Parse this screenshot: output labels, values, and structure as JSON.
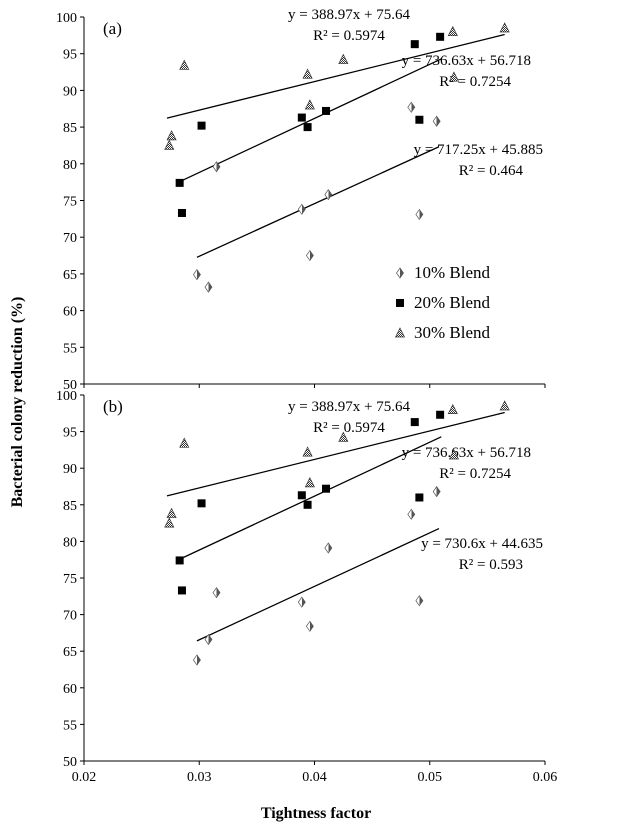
{
  "chart_data": {
    "type": "scatter",
    "xlabel": "Tightness factor",
    "ylabel": "Bacterial colony reduction (%)",
    "x_ticks": [
      "0.02",
      "0.03",
      "0.04",
      "0.05",
      "0.06"
    ],
    "y_ticks": [
      "50",
      "55",
      "60",
      "65",
      "70",
      "75",
      "80",
      "85",
      "90",
      "95",
      "100"
    ],
    "xlim": [
      0.02,
      0.06
    ],
    "ylim": [
      50,
      100
    ],
    "legend": {
      "placement": "inside panel (a), lower middle",
      "entries": [
        "10% Blend",
        "20% Blend",
        "30% Blend"
      ]
    },
    "panels": [
      {
        "label": "(a)",
        "series": [
          {
            "name": "10% Blend",
            "marker": "half-filled diamond",
            "points": [
              [
                0.0298,
                64.9
              ],
              [
                0.0308,
                63.2
              ],
              [
                0.0315,
                79.6
              ],
              [
                0.0389,
                73.8
              ],
              [
                0.0396,
                67.5
              ],
              [
                0.0412,
                75.8
              ],
              [
                0.0484,
                87.7
              ],
              [
                0.0491,
                73.1
              ],
              [
                0.0506,
                85.8
              ]
            ]
          },
          {
            "name": "20% Blend",
            "marker": "filled square",
            "points": [
              [
                0.0283,
                77.4
              ],
              [
                0.0285,
                73.3
              ],
              [
                0.0302,
                85.2
              ],
              [
                0.0389,
                86.3
              ],
              [
                0.0394,
                85.0
              ],
              [
                0.041,
                87.2
              ],
              [
                0.0487,
                96.3
              ],
              [
                0.0491,
                86.0
              ],
              [
                0.0509,
                97.3
              ]
            ]
          },
          {
            "name": "30% Blend",
            "marker": "shaded triangle",
            "points": [
              [
                0.0274,
                82.5
              ],
              [
                0.0276,
                83.8
              ],
              [
                0.0287,
                93.4
              ],
              [
                0.0394,
                92.2
              ],
              [
                0.0396,
                88.0
              ],
              [
                0.0425,
                94.2
              ],
              [
                0.052,
                98.0
              ],
              [
                0.0521,
                91.8
              ],
              [
                0.0565,
                98.5
              ]
            ]
          }
        ],
        "trendlines": [
          {
            "series": "30% Blend",
            "equation": "y = 388.97x + 75.64",
            "r2": "R² = 0.5974",
            "slope": 388.97,
            "intercept": 75.64,
            "x_range": [
              0.0272,
              0.0565
            ]
          },
          {
            "series": "20% Blend",
            "equation": "y = 736.63x + 56.718",
            "r2": "R² = 0.7254",
            "slope": 736.63,
            "intercept": 56.718,
            "x_range": [
              0.0282,
              0.051
            ]
          },
          {
            "series": "10% Blend",
            "equation": "y = 717.25x + 45.885",
            "r2": "R² = 0.464",
            "slope": 717.25,
            "intercept": 45.885,
            "x_range": [
              0.0298,
              0.0508
            ]
          }
        ]
      },
      {
        "label": "(b)",
        "series": [
          {
            "name": "10% Blend",
            "marker": "half-filled diamond",
            "points": [
              [
                0.0298,
                63.8
              ],
              [
                0.0308,
                66.6
              ],
              [
                0.0315,
                73.0
              ],
              [
                0.0389,
                71.7
              ],
              [
                0.0396,
                68.4
              ],
              [
                0.0412,
                79.1
              ],
              [
                0.0484,
                83.7
              ],
              [
                0.0491,
                71.9
              ],
              [
                0.0506,
                86.8
              ]
            ]
          },
          {
            "name": "20% Blend",
            "marker": "filled square",
            "points": [
              [
                0.0283,
                77.4
              ],
              [
                0.0285,
                73.3
              ],
              [
                0.0302,
                85.2
              ],
              [
                0.0389,
                86.3
              ],
              [
                0.0394,
                85.0
              ],
              [
                0.041,
                87.2
              ],
              [
                0.0487,
                96.3
              ],
              [
                0.0491,
                86.0
              ],
              [
                0.0509,
                97.3
              ]
            ]
          },
          {
            "name": "30% Blend",
            "marker": "shaded triangle",
            "points": [
              [
                0.0274,
                82.5
              ],
              [
                0.0276,
                83.8
              ],
              [
                0.0287,
                93.4
              ],
              [
                0.0394,
                92.2
              ],
              [
                0.0396,
                88.0
              ],
              [
                0.0425,
                94.2
              ],
              [
                0.052,
                98.0
              ],
              [
                0.0521,
                91.8
              ],
              [
                0.0565,
                98.5
              ]
            ]
          }
        ],
        "trendlines": [
          {
            "series": "30% Blend",
            "equation": "y = 388.97x + 75.64",
            "r2": "R² = 0.5974",
            "slope": 388.97,
            "intercept": 75.64,
            "x_range": [
              0.0272,
              0.0565
            ]
          },
          {
            "series": "20% Blend",
            "equation": "y = 736.63x + 56.718",
            "r2": "R² = 0.7254",
            "slope": 736.63,
            "intercept": 56.718,
            "x_range": [
              0.0282,
              0.051
            ]
          },
          {
            "series": "10% Blend",
            "equation": "y = 730.6x + 44.635",
            "r2": "R² = 0.593",
            "slope": 730.6,
            "intercept": 44.635,
            "x_range": [
              0.0298,
              0.0508
            ]
          }
        ]
      }
    ],
    "grid": false
  }
}
